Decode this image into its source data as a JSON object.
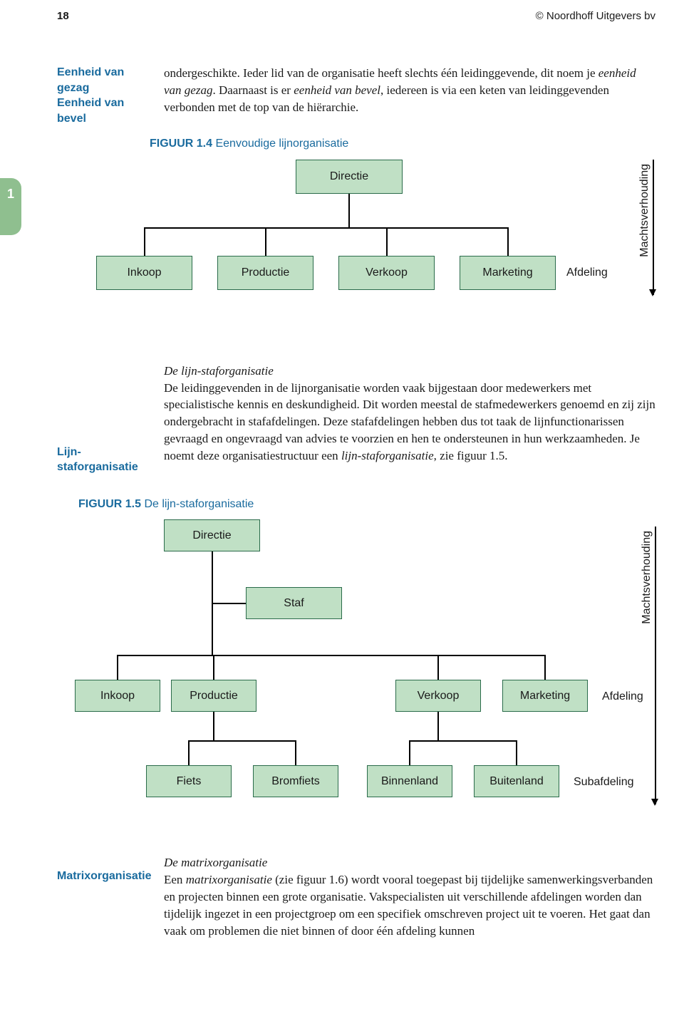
{
  "header": {
    "page_number": "18",
    "copyright": "© Noordhoff Uitgevers bv"
  },
  "thumb_tab": "1",
  "section1": {
    "margin_terms": "Eenheid van gezag\nEenheid van bevel",
    "body": "ondergeschikte. Ieder lid van de organisatie heeft slechts één leidinggevende, dit noem je <em>eenheid van gezag</em>. Daarnaast is er <em>eenheid van bevel</em>, iedereen is via een keten van leidinggevenden verbonden met de top van de hiërarchie."
  },
  "fig14": {
    "label": "FIGUUR 1.4",
    "title": "Eenvoudige lijnorganisatie",
    "boxes": {
      "directie": "Directie",
      "inkoop": "Inkoop",
      "productie": "Productie",
      "verkoop": "Verkoop",
      "marketing": "Marketing"
    },
    "afdeling_label": "Afdeling",
    "axis_label": "Machtsverhouding",
    "colors": {
      "box_fill": "#c0e0c5",
      "box_border": "#2a6b4a"
    }
  },
  "section2": {
    "margin_terms": "Lijn-staforganisatie",
    "head": "De lijn-staforganisatie",
    "body": "De leidinggevenden in de lijnorganisatie worden vaak bijgestaan door medewerkers met specialistische kennis en deskundigheid. Dit worden meestal de stafmedewerkers genoemd en zij zijn ondergebracht in stafafdelingen. Deze stafafdelingen hebben dus tot taak de lijnfunctionarissen gevraagd en ongevraagd van advies te voorzien en hen te ondersteunen in hun werkzaamheden. Je noemt deze organisatiestructuur een <em>lijn-staforganisatie</em>, zie figuur 1.5."
  },
  "fig15": {
    "label": "FIGUUR 1.5",
    "title": "De lijn-staforganisatie",
    "boxes": {
      "directie": "Directie",
      "staf": "Staf",
      "inkoop": "Inkoop",
      "productie": "Productie",
      "verkoop": "Verkoop",
      "marketing": "Marketing",
      "fiets": "Fiets",
      "bromfiets": "Bromfiets",
      "binnenland": "Binnenland",
      "buitenland": "Buitenland"
    },
    "afdeling_label": "Afdeling",
    "subafdeling_label": "Subafdeling",
    "axis_label": "Machtsverhouding"
  },
  "section3": {
    "margin_terms": "Matrixorganisatie",
    "head": "De matrixorganisatie",
    "body": "Een <em>matrixorganisatie</em> (zie figuur 1.6) wordt vooral toegepast bij tijdelijke samenwerkingsverbanden en projecten binnen een grote organisatie. Vakspecialisten uit verschillende afdelingen worden dan tijdelijk ingezet in een projectgroep om een specifiek omschreven project uit te voeren. Het gaat dan vaak om problemen die niet binnen of door één afdeling kunnen"
  }
}
